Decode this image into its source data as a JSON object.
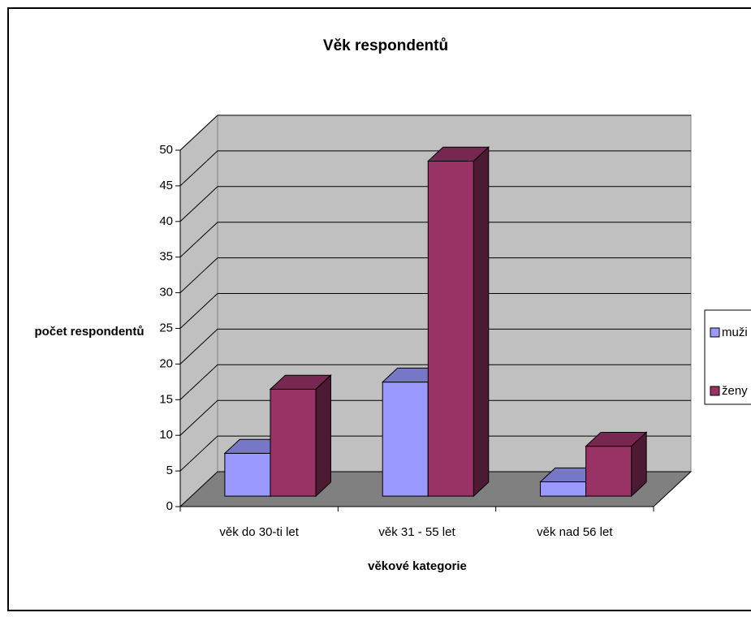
{
  "chart_data": {
    "type": "bar3d",
    "title": "Věk respondentů",
    "x_label": "věkové kategorie",
    "y_label": "počet respondentů",
    "categories": [
      "věk do 30-ti let",
      "věk 31 - 55 let",
      "věk nad 56 let"
    ],
    "series": [
      {
        "name": "muži",
        "color": "#9999ff",
        "values": [
          6,
          16,
          2
        ]
      },
      {
        "name": "ženy",
        "color": "#993366",
        "values": [
          15,
          47,
          7
        ]
      }
    ],
    "ylim": [
      0,
      50
    ],
    "yticks": [
      0,
      5,
      10,
      15,
      20,
      25,
      30,
      35,
      40,
      45,
      50
    ],
    "grid": true,
    "legend": "right"
  }
}
